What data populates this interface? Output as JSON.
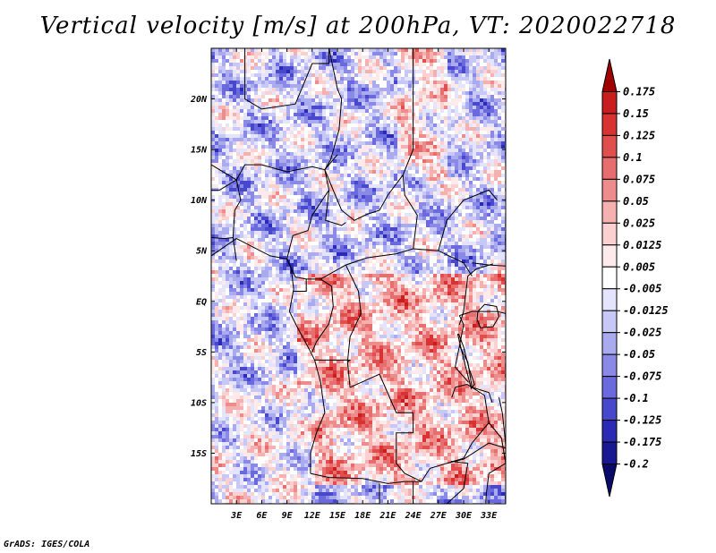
{
  "chart_data": {
    "type": "heatmap",
    "title": "Vertical velocity [m/s] at 200hPa, VT: 2020022718",
    "variable": "Vertical velocity",
    "units": "m/s",
    "level": "200hPa",
    "valid_time": "2020022718",
    "x_ticks": [
      "3E",
      "6E",
      "9E",
      "12E",
      "15E",
      "18E",
      "21E",
      "24E",
      "27E",
      "30E",
      "33E"
    ],
    "y_ticks": [
      "20N",
      "15N",
      "10N",
      "5N",
      "EQ",
      "5S",
      "10S",
      "15S"
    ],
    "xlim": [
      0,
      35
    ],
    "ylim": [
      -20,
      25
    ],
    "colorbar": {
      "levels": [
        "0.175",
        "0.15",
        "0.125",
        "0.1",
        "0.075",
        "0.05",
        "0.025",
        "0.0125",
        "0.005",
        "-0.005",
        "-0.0125",
        "-0.025",
        "-0.05",
        "-0.075",
        "-0.1",
        "-0.125",
        "-0.175",
        "-0.2"
      ],
      "colors": [
        "#a00000",
        "#c81e1e",
        "#d83232",
        "#e14e4e",
        "#e66e6e",
        "#ee8c8c",
        "#f5b0b0",
        "#fad0d0",
        "#fdeaea",
        "#ffffff",
        "#e4e4fc",
        "#c8c8f6",
        "#aaaaee",
        "#8a8ae6",
        "#6a6ade",
        "#4848cc",
        "#2a2ab4",
        "#181890",
        "#0a0a6a"
      ]
    }
  },
  "footer": {
    "credit": "GrADS: IGES/COLA"
  }
}
